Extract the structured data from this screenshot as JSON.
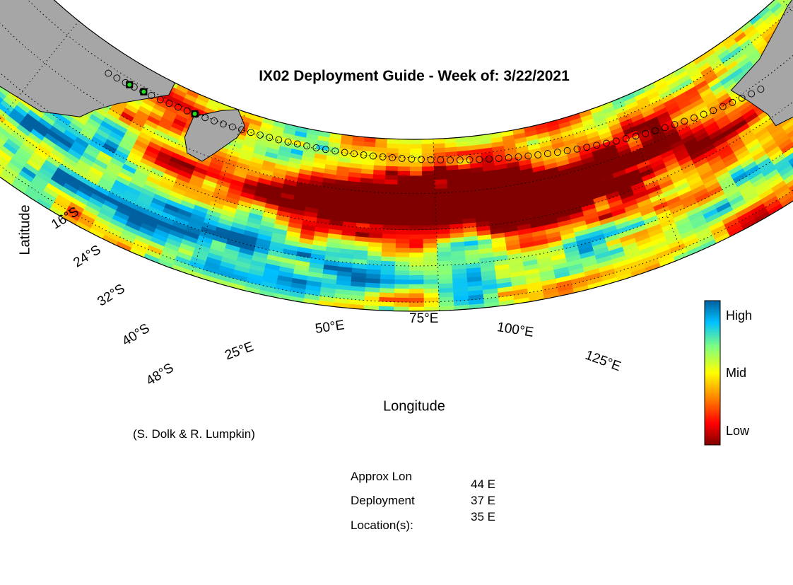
{
  "title": "IX02 Deployment Guide - Week of: 3/22/2021",
  "xlabel": "Longitude",
  "ylabel": "Latitude",
  "lat_ticks": [
    "16°S",
    "24°S",
    "32°S",
    "40°S",
    "48°S"
  ],
  "lon_ticks": [
    "25°E",
    "50°E",
    "75°E",
    "100°E",
    "125°E"
  ],
  "colorbar": {
    "high": "High",
    "mid": "Mid",
    "low": "Low"
  },
  "credit": "(S. Dolk & R. Lumpkin)",
  "deployment": {
    "label_lines": [
      "Approx Lon",
      "Deployment",
      "Location(s):"
    ],
    "locations": [
      "44 E",
      "37 E",
      "35 E"
    ]
  },
  "map": {
    "lon_range": [
      15,
      130
    ],
    "lat_range": [
      -50,
      -12
    ],
    "land_color": "#a6a6a6",
    "track_start_lon": 32,
    "track_end_lon": 116,
    "track_points": 70,
    "deployment_lons": [
      44,
      37,
      35
    ]
  }
}
